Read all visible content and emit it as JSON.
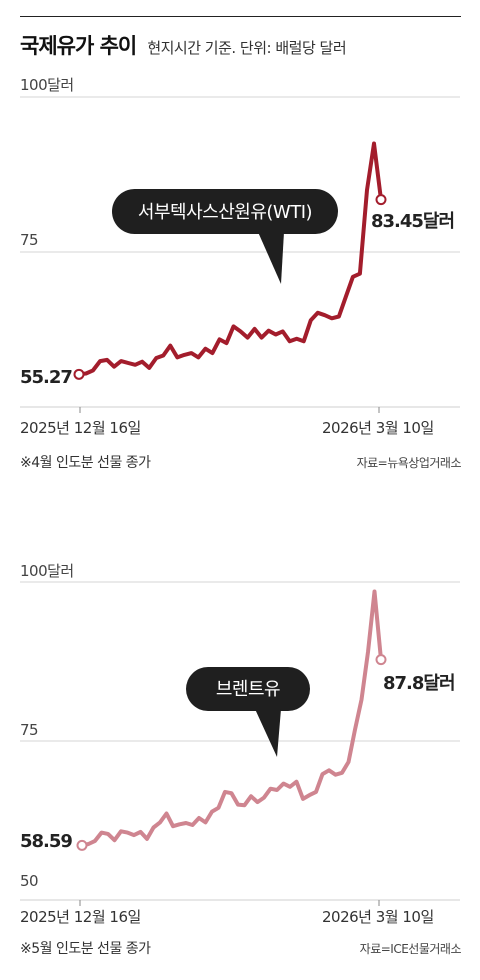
{
  "header": {
    "title": "국제유가 추이",
    "subtitle": "현지시간 기준. 단위: 배럴당 달러"
  },
  "chart_data": [
    {
      "type": "line",
      "series": [
        {
          "name": "서부텍사스산원유(WTI)",
          "color": "#a31d2c"
        }
      ],
      "x_start_label": "2025년 12월 16일",
      "x_end_label": "2026년 3월 10일",
      "ylim": [
        50,
        100
      ],
      "y_tick_labels": [
        "100달러",
        "75"
      ],
      "start_value": 55.27,
      "start_value_label": "55.27",
      "end_value": 83.45,
      "end_value_label": "83.45달러",
      "values": [
        55.27,
        55.4,
        55.9,
        57.4,
        57.6,
        56.5,
        57.4,
        57.1,
        56.8,
        57.3,
        56.3,
        57.9,
        58.3,
        59.9,
        58.0,
        58.4,
        58.7,
        58.0,
        59.4,
        58.7,
        60.9,
        60.3,
        63.0,
        62.2,
        61.2,
        62.6,
        61.2,
        62.3,
        61.7,
        62.2,
        60.6,
        61.0,
        60.6,
        64.0,
        65.2,
        64.8,
        64.3,
        64.6,
        67.8,
        71.0,
        71.5,
        85.0,
        92.5,
        83.45
      ],
      "note": "※4월 인도분 선물 종가",
      "source": "자료=뉴욕상업거래소"
    },
    {
      "type": "line",
      "series": [
        {
          "name": "브렌트유",
          "color": "#cf8590"
        }
      ],
      "x_start_label": "2025년 12월 16일",
      "x_end_label": "2026년 3월 10일",
      "ylim": [
        50,
        100
      ],
      "y_tick_labels": [
        "100달러",
        "75",
        "50"
      ],
      "start_value": 58.59,
      "start_value_label": "58.59",
      "end_value": 87.8,
      "end_value_label": "87.8달러",
      "values": [
        58.59,
        58.8,
        59.3,
        60.6,
        60.4,
        59.4,
        60.8,
        60.6,
        60.2,
        60.7,
        59.6,
        61.4,
        62.2,
        63.6,
        61.6,
        61.9,
        62.1,
        61.8,
        62.9,
        62.2,
        63.9,
        64.5,
        67.0,
        66.8,
        65.0,
        64.9,
        66.3,
        65.4,
        66.1,
        67.5,
        67.3,
        68.3,
        67.8,
        68.6,
        65.9,
        66.5,
        67.0,
        69.8,
        70.4,
        69.7,
        70.0,
        71.7,
        76.8,
        81.5,
        89.0,
        98.5,
        87.8
      ],
      "note": "※5월 인도분 선물 종가",
      "source": "자료=ICE선물거래소"
    }
  ]
}
